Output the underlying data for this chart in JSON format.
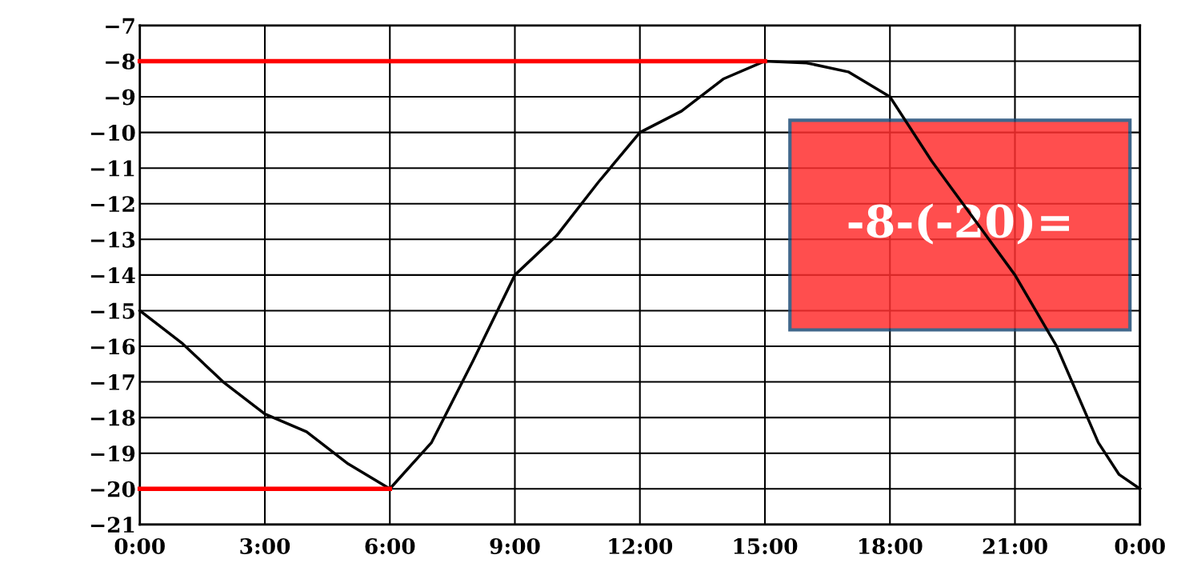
{
  "chart_data": {
    "type": "line",
    "xlim": [
      0,
      24
    ],
    "ylim": [
      -21,
      -7
    ],
    "xticks": [
      {
        "value": 0,
        "label": "0:00"
      },
      {
        "value": 3,
        "label": "3:00"
      },
      {
        "value": 6,
        "label": "6:00"
      },
      {
        "value": 9,
        "label": "9:00"
      },
      {
        "value": 12,
        "label": "12:00"
      },
      {
        "value": 15,
        "label": "15:00"
      },
      {
        "value": 18,
        "label": "18:00"
      },
      {
        "value": 21,
        "label": "21:00"
      },
      {
        "value": 24,
        "label": "0:00"
      }
    ],
    "yticks": [
      -7,
      -8,
      -9,
      -10,
      -11,
      -12,
      -13,
      -14,
      -15,
      -16,
      -17,
      -18,
      -19,
      -20,
      -21
    ],
    "grid": true,
    "marker": "none",
    "line_style": "solid",
    "series": [
      {
        "color": "#000000",
        "x": [
          0,
          1,
          2,
          3,
          4,
          5,
          6,
          7,
          8,
          9,
          10,
          11,
          12,
          13,
          14,
          15,
          16,
          17,
          18,
          19,
          19.5,
          20,
          21,
          22,
          23,
          23.5,
          24
        ],
        "values": [
          -15,
          -15.9,
          -17,
          -17.9,
          -18.4,
          -19.3,
          -20,
          -18.7,
          -16.4,
          -14,
          -12.9,
          -11.4,
          -10,
          -9.4,
          -8.5,
          -8,
          -8.05,
          -8.3,
          -9,
          -10.8,
          -11.6,
          -12.4,
          -14,
          -16,
          -18.7,
          -19.6,
          -20
        ]
      },
      {
        "color": "#ff0000",
        "x": [
          0,
          15
        ],
        "values": [
          -8,
          -8
        ]
      },
      {
        "color": "#ff0000",
        "x": [
          0,
          6
        ],
        "values": [
          -20,
          -20
        ]
      }
    ],
    "annotations": [
      "-8-(-20)="
    ]
  }
}
